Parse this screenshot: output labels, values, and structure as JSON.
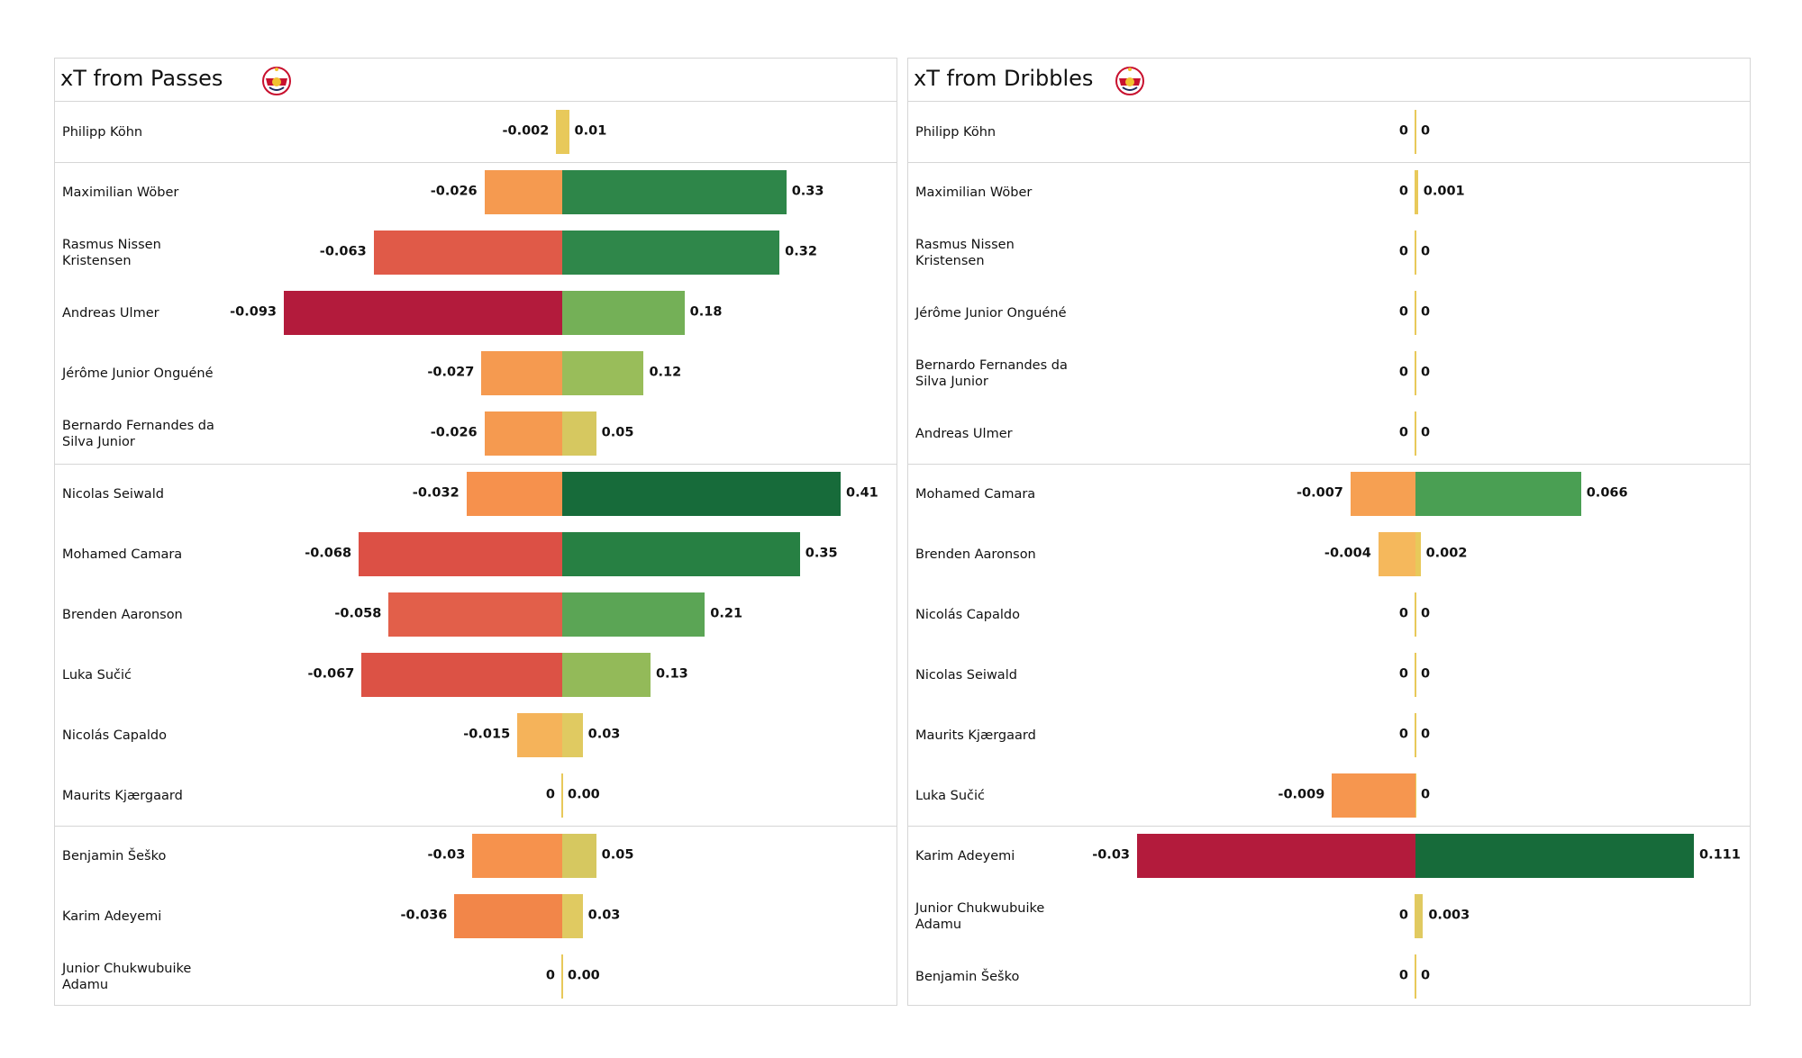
{
  "chart_data": [
    {
      "type": "diverging_bar",
      "title": "xT from Passes",
      "categories": [
        "Philipp Köhn",
        "Maximilian Wöber",
        "Rasmus Nissen Kristensen",
        "Andreas Ulmer",
        "Jérôme Junior Onguéné",
        "Bernardo Fernandes da Silva Junior",
        "Nicolas Seiwald",
        "Mohamed Camara",
        "Brenden  Aaronson",
        "Luka Sučić",
        "Nicolás Capaldo",
        "Maurits Kjærgaard",
        "Benjamin Šeško",
        "Karim Adeyemi",
        "Junior Chukwubuike Adamu"
      ],
      "series": [
        {
          "values": [
            -0.002,
            -0.026,
            -0.063,
            -0.093,
            -0.027,
            -0.026,
            -0.032,
            -0.068,
            -0.058,
            -0.067,
            -0.015,
            0,
            -0.03,
            -0.036,
            0
          ],
          "colors": [
            "#e8c95a",
            "#f59a50",
            "#e05a48",
            "#b31b3c",
            "#f59a50",
            "#f59a50",
            "#f6914d",
            "#dc5045",
            "#e25f4a",
            "#dc5245",
            "#f5b35a",
            "#e8c95a",
            "#f6924d",
            "#f28649",
            "#e8c95a"
          ]
        },
        {
          "values": [
            0.01,
            0.33,
            0.32,
            0.18,
            0.12,
            0.05,
            0.41,
            0.35,
            0.21,
            0.13,
            0.03,
            0,
            0.05,
            0.03,
            0
          ],
          "value_labels": [
            "0.01",
            "0.33",
            "0.32",
            "0.18",
            "0.12",
            "0.05",
            "0.41",
            "0.35",
            "0.21",
            "0.13",
            "0.03",
            "0.00",
            "0.05",
            "0.03",
            "0.00"
          ],
          "colors": [
            "#e8c95a",
            "#2e8649",
            "#2f874a",
            "#74b057",
            "#99bd5a",
            "#d6c860",
            "#176b3a",
            "#278043",
            "#5ba555",
            "#93ba59",
            "#e0ca61",
            "#e8c95a",
            "#d6c860",
            "#e0ca61",
            "#e8c95a"
          ]
        }
      ]
    },
    {
      "type": "diverging_bar",
      "title": "xT from Dribbles",
      "categories": [
        "Philipp Köhn",
        "Maximilian Wöber",
        "Rasmus Nissen Kristensen",
        "Jérôme Junior Onguéné",
        "Bernardo Fernandes da Silva Junior",
        "Andreas Ulmer",
        "Mohamed Camara",
        "Brenden  Aaronson",
        "Nicolás Capaldo",
        "Nicolas Seiwald",
        "Maurits Kjærgaard",
        "Luka Sučić",
        "Karim Adeyemi",
        "Junior Chukwubuike Adamu",
        "Benjamin Šeško"
      ],
      "series": [
        {
          "values": [
            0,
            0,
            0,
            0,
            0,
            0,
            -0.007,
            -0.004,
            0,
            0,
            0,
            -0.009,
            -0.03,
            0,
            0
          ],
          "colors": [
            "#e8c95a",
            "#e8c95a",
            "#e8c95a",
            "#e8c95a",
            "#e8c95a",
            "#e8c95a",
            "#f6a052",
            "#f5b85c",
            "#e8c95a",
            "#e8c95a",
            "#e8c95a",
            "#f6964f",
            "#b31b3c",
            "#e8c95a",
            "#e8c95a"
          ]
        },
        {
          "values": [
            0,
            0.001,
            0,
            0,
            0,
            0,
            0.066,
            0.002,
            0,
            0,
            0,
            0,
            0.111,
            0.003,
            0
          ],
          "colors": [
            "#e8c95a",
            "#e8c95a",
            "#e8c95a",
            "#e8c95a",
            "#e8c95a",
            "#e8c95a",
            "#4a9f53",
            "#e8c95a",
            "#e8c95a",
            "#e8c95a",
            "#e8c95a",
            "#e8c95a",
            "#176b3a",
            "#e0ca61",
            "#e8c95a"
          ]
        }
      ]
    }
  ]
}
